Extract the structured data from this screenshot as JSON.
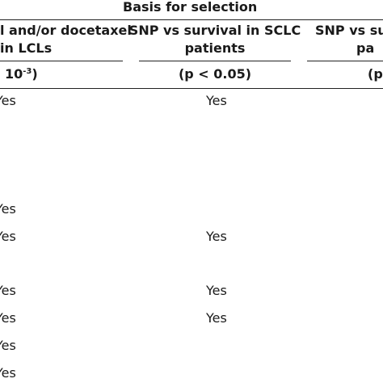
{
  "table": {
    "group_header": "Basis for selection",
    "columns": [
      {
        "header_line1": "l and/or docetaxel",
        "header_line2": "in LCLs",
        "criterion": "10",
        "criterion_exp": "-3",
        "criterion_close": ")"
      },
      {
        "header_line1": "SNP vs survival in SCLC",
        "header_line2": "patients",
        "criterion": "(p < 0.05)"
      },
      {
        "header_line1": "SNP vs sur",
        "header_line2": "pa",
        "criterion": "(p"
      }
    ],
    "rows": [
      {
        "c1": "Yes",
        "c2": "Yes"
      },
      {
        "c1": "",
        "c2": ""
      },
      {
        "c1": "",
        "c2": ""
      },
      {
        "c1": "Yes",
        "c2": ""
      },
      {
        "c1": "Yes",
        "c2": "Yes"
      },
      {
        "c1": "",
        "c2": ""
      },
      {
        "c1": "Yes",
        "c2": "Yes"
      },
      {
        "c1": "Yes",
        "c2": "Yes"
      },
      {
        "c1": "Yes",
        "c2": ""
      },
      {
        "c1": "Yes",
        "c2": ""
      }
    ]
  }
}
